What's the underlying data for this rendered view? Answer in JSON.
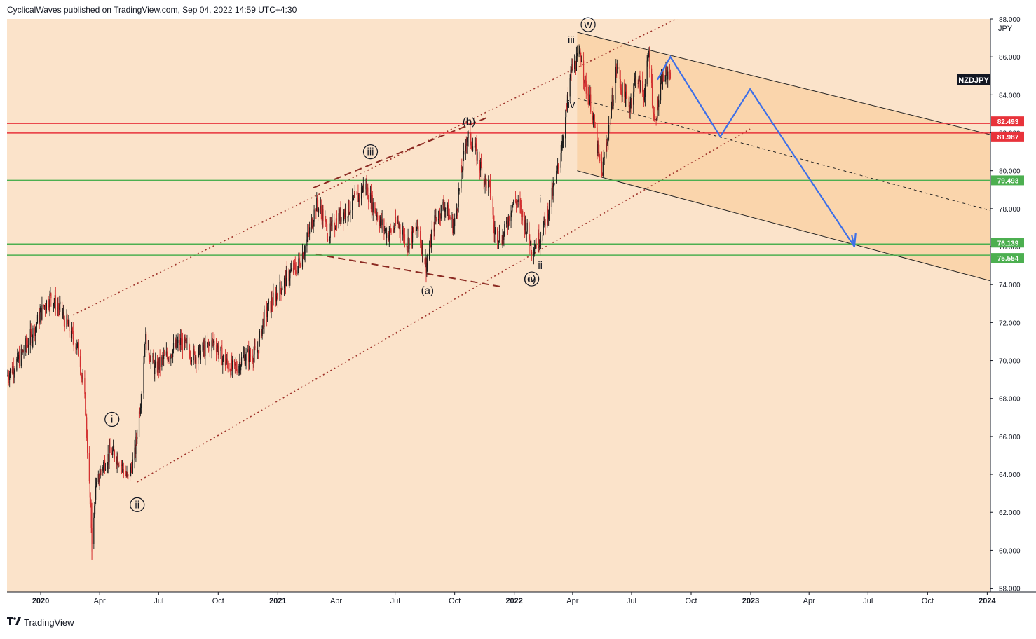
{
  "header": {
    "published_text": "CyclicalWaves published on TradingView.com, Sep 04, 2022 14:59 UTC+4:30"
  },
  "footer": {
    "brand": "TradingView",
    "logo_icon": "tradingview-logo-icon"
  },
  "colors": {
    "background": "#FBE3CA",
    "channel_fill": "#F9D3A8",
    "red_line": "#E8333B",
    "green_line": "#4CAF50",
    "projection": "#3D6FE8",
    "up_candle": "#1A1A1A",
    "down_candle": "#D32F2F",
    "wave_dots": "#A0342B"
  },
  "chart_data": {
    "type": "candlestick",
    "symbol": "NZDJPY",
    "currency": "JPY",
    "x_range": [
      "2019-11-10",
      "2024-01-06"
    ],
    "y_range": [
      57.8,
      88.0
    ],
    "y_ticks": [
      "58.000",
      "60.000",
      "62.000",
      "64.000",
      "66.000",
      "68.000",
      "70.000",
      "72.000",
      "74.000",
      "76.000",
      "78.000",
      "80.000",
      "82.000",
      "84.000",
      "86.000",
      "88.000"
    ],
    "x_ticks": [
      {
        "date": "2020-01-01",
        "label": "2020",
        "bold": true
      },
      {
        "date": "2020-04-01",
        "label": "Apr",
        "bold": false
      },
      {
        "date": "2020-07-01",
        "label": "Jul",
        "bold": false
      },
      {
        "date": "2020-10-01",
        "label": "Oct",
        "bold": false
      },
      {
        "date": "2021-01-01",
        "label": "2021",
        "bold": true
      },
      {
        "date": "2021-04-01",
        "label": "Apr",
        "bold": false
      },
      {
        "date": "2021-07-01",
        "label": "Jul",
        "bold": false
      },
      {
        "date": "2021-10-01",
        "label": "Oct",
        "bold": false
      },
      {
        "date": "2022-01-01",
        "label": "2022",
        "bold": true
      },
      {
        "date": "2022-04-01",
        "label": "Apr",
        "bold": false
      },
      {
        "date": "2022-07-01",
        "label": "Jul",
        "bold": false
      },
      {
        "date": "2022-10-01",
        "label": "Oct",
        "bold": false
      },
      {
        "date": "2023-01-01",
        "label": "2023",
        "bold": true
      },
      {
        "date": "2023-04-01",
        "label": "Apr",
        "bold": false
      },
      {
        "date": "2023-07-01",
        "label": "Jul",
        "bold": false
      },
      {
        "date": "2023-10-01",
        "label": "Oct",
        "bold": false
      },
      {
        "date": "2024-01-01",
        "label": "2024",
        "bold": true
      }
    ],
    "price_path": [
      [
        "2019-11-10",
        69.2
      ],
      [
        "2019-12-01",
        70.2
      ],
      [
        "2019-12-20",
        71.5
      ],
      [
        "2020-01-05",
        72.8
      ],
      [
        "2020-01-17",
        73.4
      ],
      [
        "2020-02-01",
        72.6
      ],
      [
        "2020-02-20",
        71.2
      ],
      [
        "2020-03-01",
        70.3
      ],
      [
        "2020-03-10",
        67.5
      ],
      [
        "2020-03-18",
        62.0
      ],
      [
        "2020-03-21",
        60.0
      ],
      [
        "2020-03-25",
        63.0
      ],
      [
        "2020-04-05",
        64.5
      ],
      [
        "2020-04-20",
        65.2
      ],
      [
        "2020-05-01",
        64.8
      ],
      [
        "2020-05-15",
        63.7
      ],
      [
        "2020-05-25",
        65.0
      ],
      [
        "2020-06-05",
        68.5
      ],
      [
        "2020-06-10",
        71.2
      ],
      [
        "2020-06-25",
        69.5
      ],
      [
        "2020-07-15",
        70.3
      ],
      [
        "2020-08-05",
        71.0
      ],
      [
        "2020-08-25",
        70.2
      ],
      [
        "2020-09-10",
        70.6
      ],
      [
        "2020-09-25",
        71.0
      ],
      [
        "2020-10-10",
        70.0
      ],
      [
        "2020-10-25",
        69.5
      ],
      [
        "2020-11-10",
        70.2
      ],
      [
        "2020-11-30",
        70.4
      ],
      [
        "2020-12-10",
        72.2
      ],
      [
        "2020-12-25",
        73.2
      ],
      [
        "2021-01-15",
        74.4
      ],
      [
        "2021-02-01",
        75.0
      ],
      [
        "2021-02-15",
        76.3
      ],
      [
        "2021-03-01",
        78.2
      ],
      [
        "2021-03-10",
        77.8
      ],
      [
        "2021-03-20",
        76.6
      ],
      [
        "2021-04-01",
        77.4
      ],
      [
        "2021-04-20",
        78.0
      ],
      [
        "2021-05-05",
        78.6
      ],
      [
        "2021-05-15",
        79.3
      ],
      [
        "2021-05-25",
        78.4
      ],
      [
        "2021-06-10",
        77.2
      ],
      [
        "2021-06-20",
        76.6
      ],
      [
        "2021-07-05",
        77.3
      ],
      [
        "2021-07-20",
        76.2
      ],
      [
        "2021-08-05",
        77.0
      ],
      [
        "2021-08-18",
        75.0
      ],
      [
        "2021-09-01",
        77.5
      ],
      [
        "2021-09-15",
        78.2
      ],
      [
        "2021-09-30",
        77.0
      ],
      [
        "2021-10-10",
        79.5
      ],
      [
        "2021-10-20",
        81.9
      ],
      [
        "2021-11-01",
        81.2
      ],
      [
        "2021-11-15",
        79.6
      ],
      [
        "2021-11-25",
        79.0
      ],
      [
        "2021-12-01",
        76.8
      ],
      [
        "2021-12-15",
        76.5
      ],
      [
        "2021-12-28",
        78.2
      ],
      [
        "2022-01-05",
        78.4
      ],
      [
        "2022-01-20",
        77.0
      ],
      [
        "2022-01-28",
        75.9
      ],
      [
        "2022-02-10",
        76.5
      ],
      [
        "2022-02-20",
        77.6
      ],
      [
        "2022-03-01",
        78.8
      ],
      [
        "2022-03-10",
        80.2
      ],
      [
        "2022-03-20",
        82.5
      ],
      [
        "2022-03-30",
        85.3
      ],
      [
        "2022-04-08",
        85.8
      ],
      [
        "2022-04-15",
        86.1
      ],
      [
        "2022-04-20",
        84.6
      ],
      [
        "2022-05-01",
        83.3
      ],
      [
        "2022-05-10",
        81.0
      ],
      [
        "2022-05-16",
        79.8
      ],
      [
        "2022-05-28",
        82.5
      ],
      [
        "2022-06-08",
        85.5
      ],
      [
        "2022-06-18",
        84.0
      ],
      [
        "2022-06-28",
        83.4
      ],
      [
        "2022-07-08",
        85.0
      ],
      [
        "2022-07-20",
        84.0
      ],
      [
        "2022-07-28",
        86.2
      ],
      [
        "2022-08-05",
        82.5
      ],
      [
        "2022-08-18",
        84.8
      ],
      [
        "2022-08-30",
        85.3
      ]
    ],
    "horizontal_levels": [
      {
        "value": 82.493,
        "label": "82.493",
        "color": "red"
      },
      {
        "value": 81.987,
        "label": "81.987",
        "color": "red"
      },
      {
        "value": 79.493,
        "label": "79.493",
        "color": "green"
      },
      {
        "value": 76.139,
        "label": "76.139",
        "color": "green"
      },
      {
        "value": 75.554,
        "label": "75.554",
        "color": "green"
      }
    ],
    "projection_path": [
      [
        "2022-08-10",
        84.8
      ],
      [
        "2022-08-30",
        86.0
      ],
      [
        "2022-11-15",
        81.8
      ],
      [
        "2022-12-31",
        84.3
      ],
      [
        "2023-06-10",
        76.0
      ]
    ],
    "projection_arrowhead": [
      [
        "2023-06-06",
        76.6
      ],
      [
        "2023-06-10",
        76.0
      ],
      [
        "2023-06-12",
        76.7
      ]
    ],
    "wave_labels": [
      {
        "text": "i",
        "date": "2020-04-20",
        "value": 66.9,
        "circled": true
      },
      {
        "text": "ii",
        "date": "2020-05-29",
        "value": 62.4,
        "circled": true
      },
      {
        "text": "iii",
        "date": "2021-05-24",
        "value": 81.0,
        "circled": true
      },
      {
        "text": "(a)",
        "date": "2021-08-20",
        "value": 73.7,
        "circled": false
      },
      {
        "text": "(b)",
        "date": "2021-10-23",
        "value": 82.6,
        "circled": false
      },
      {
        "text": "(c)",
        "date": "2022-01-25",
        "value": 74.3,
        "circled": false
      },
      {
        "text": "iv",
        "date": "2022-01-28",
        "value": 74.3,
        "circled": true
      },
      {
        "text": "i",
        "date": "2022-02-10",
        "value": 78.5,
        "circled": false
      },
      {
        "text": "ii",
        "date": "2022-02-10",
        "value": 75.0,
        "circled": false
      },
      {
        "text": "iii",
        "date": "2022-03-30",
        "value": 86.9,
        "circled": false
      },
      {
        "text": "iv",
        "date": "2022-03-30",
        "value": 83.5,
        "circled": false
      },
      {
        "text": "w",
        "date": "2022-04-25",
        "value": 87.7,
        "circled": true
      }
    ]
  }
}
